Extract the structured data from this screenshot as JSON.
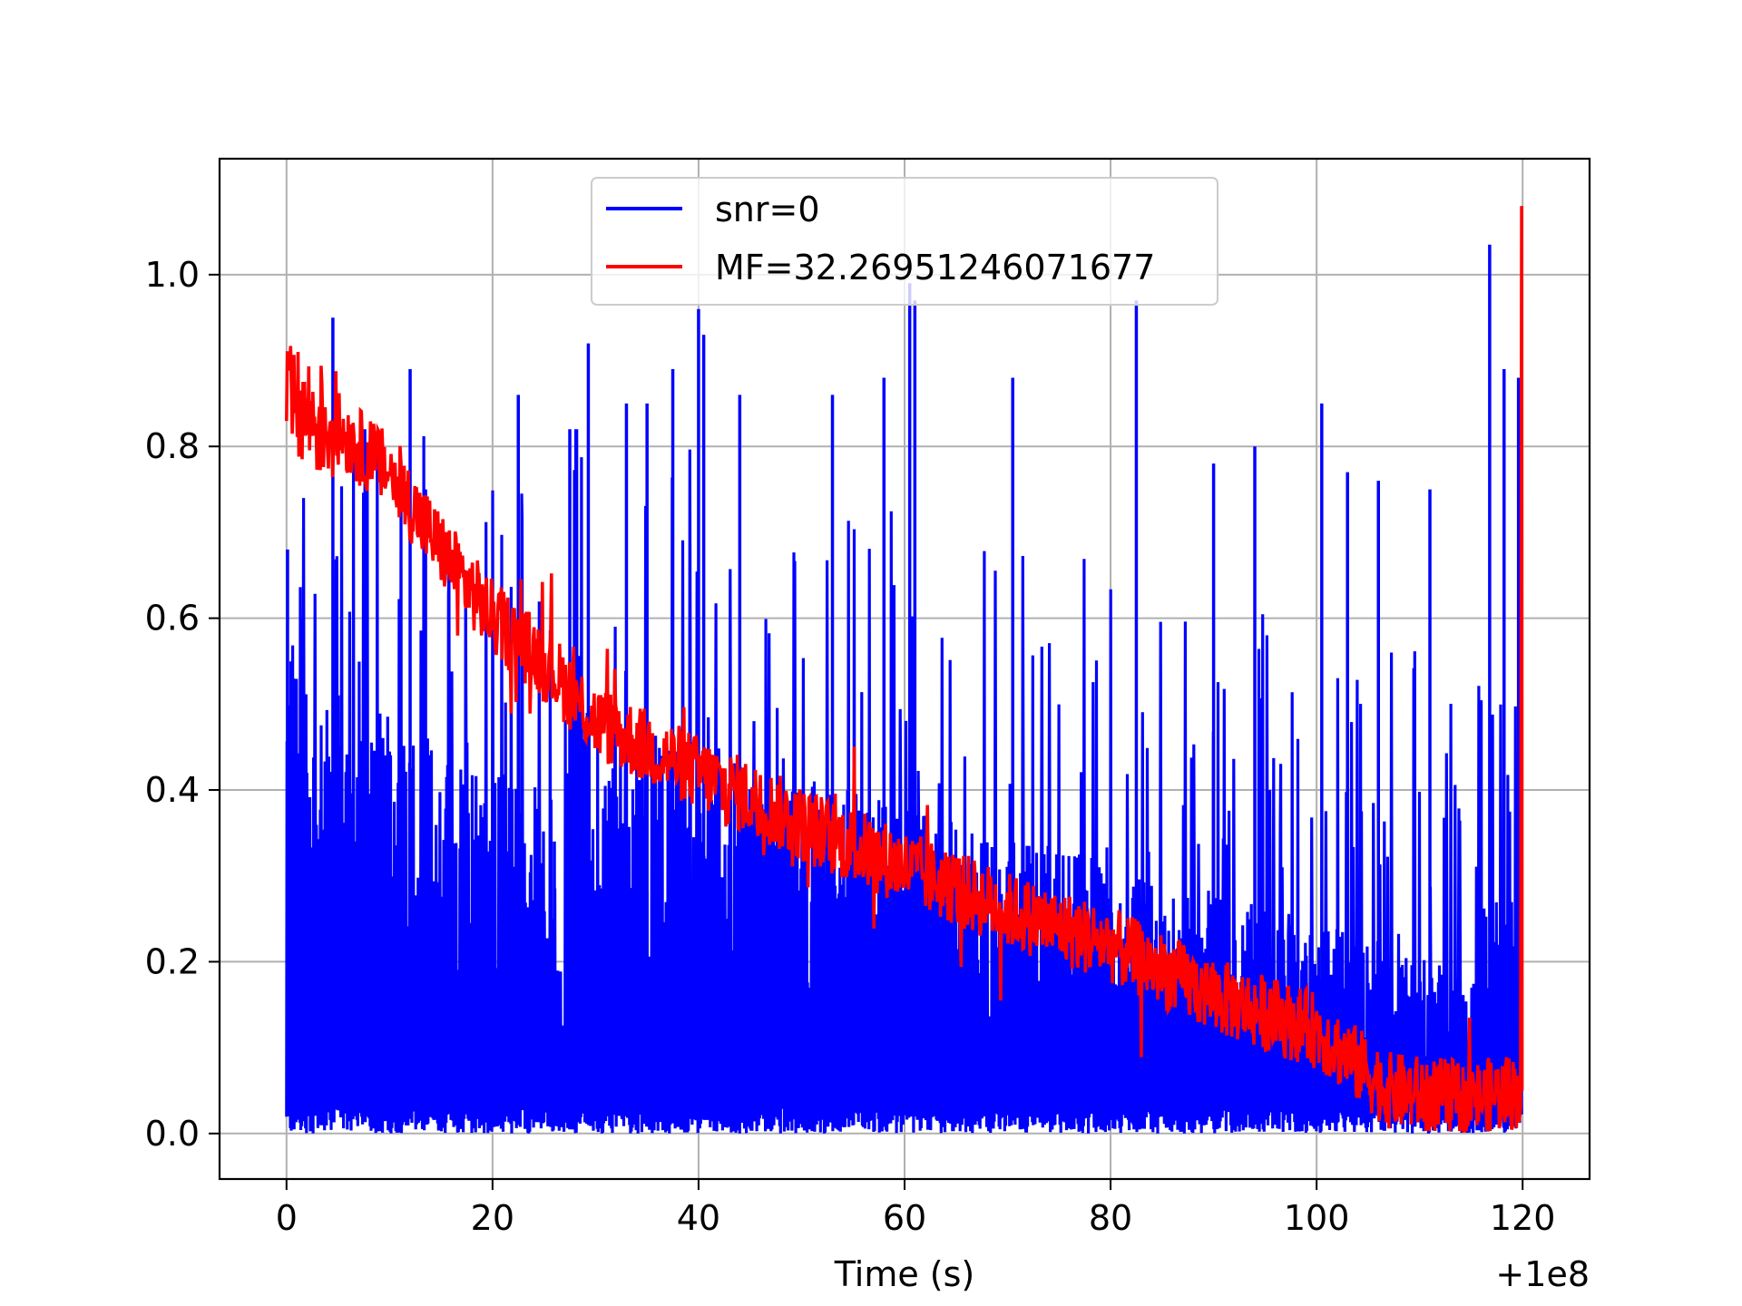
{
  "chart_data": {
    "type": "line",
    "title": "",
    "xlabel": "Time (s)",
    "ylabel": "",
    "x_offset_label": "+1e8",
    "xlim": [
      -6.5,
      126.5
    ],
    "ylim": [
      -0.053,
      1.135
    ],
    "x_ticks": [
      0,
      20,
      40,
      60,
      80,
      100,
      120
    ],
    "x_tick_labels": [
      "0",
      "20",
      "40",
      "60",
      "80",
      "100",
      "120"
    ],
    "y_ticks": [
      0.0,
      0.2,
      0.4,
      0.6,
      0.8,
      1.0
    ],
    "y_tick_labels": [
      "0.0",
      "0.2",
      "0.4",
      "0.6",
      "0.8",
      "1.0"
    ],
    "grid": true,
    "legend_position": "top-center",
    "series": [
      {
        "name": "snr=0",
        "color": "#0000ff",
        "peaks": [
          {
            "x": 0.1,
            "y": 0.68
          },
          {
            "x": 1.5,
            "y": 0.6
          },
          {
            "x": 4.5,
            "y": 0.95
          },
          {
            "x": 12,
            "y": 0.89
          },
          {
            "x": 13.5,
            "y": 0.75
          },
          {
            "x": 22.5,
            "y": 0.86
          },
          {
            "x": 26,
            "y": 0.34
          },
          {
            "x": 27.5,
            "y": 0.82
          },
          {
            "x": 29.3,
            "y": 0.92
          },
          {
            "x": 33,
            "y": 0.85
          },
          {
            "x": 35,
            "y": 0.85
          },
          {
            "x": 37.5,
            "y": 0.89
          },
          {
            "x": 40,
            "y": 0.96
          },
          {
            "x": 40.5,
            "y": 0.93
          },
          {
            "x": 44,
            "y": 0.86
          },
          {
            "x": 53,
            "y": 0.86
          },
          {
            "x": 58,
            "y": 0.88
          },
          {
            "x": 60.5,
            "y": 0.99
          },
          {
            "x": 61,
            "y": 0.97
          },
          {
            "x": 70.5,
            "y": 0.88
          },
          {
            "x": 82.5,
            "y": 0.97
          },
          {
            "x": 90,
            "y": 0.78
          },
          {
            "x": 94,
            "y": 0.8
          },
          {
            "x": 100.5,
            "y": 0.85
          },
          {
            "x": 103,
            "y": 0.77
          },
          {
            "x": 106,
            "y": 0.76
          },
          {
            "x": 111,
            "y": 0.75
          },
          {
            "x": 116.8,
            "y": 1.035
          },
          {
            "x": 118.2,
            "y": 0.89
          },
          {
            "x": 119.6,
            "y": 0.88
          }
        ]
      },
      {
        "name": "MF=32.26951246071677",
        "color": "#ff0000",
        "trend": [
          {
            "x": 0,
            "y": 0.85
          },
          {
            "x": 5,
            "y": 0.82
          },
          {
            "x": 10,
            "y": 0.77
          },
          {
            "x": 15,
            "y": 0.68
          },
          {
            "x": 20,
            "y": 0.6
          },
          {
            "x": 25,
            "y": 0.55
          },
          {
            "x": 30,
            "y": 0.48
          },
          {
            "x": 40,
            "y": 0.42
          },
          {
            "x": 50,
            "y": 0.36
          },
          {
            "x": 60,
            "y": 0.31
          },
          {
            "x": 70,
            "y": 0.26
          },
          {
            "x": 80,
            "y": 0.22
          },
          {
            "x": 90,
            "y": 0.16
          },
          {
            "x": 100,
            "y": 0.12
          },
          {
            "x": 107,
            "y": 0.05
          },
          {
            "x": 115,
            "y": 0.04
          },
          {
            "x": 119.8,
            "y": 0.05
          }
        ],
        "end_spike": {
          "x": 119.9,
          "y": 1.08
        }
      }
    ]
  }
}
